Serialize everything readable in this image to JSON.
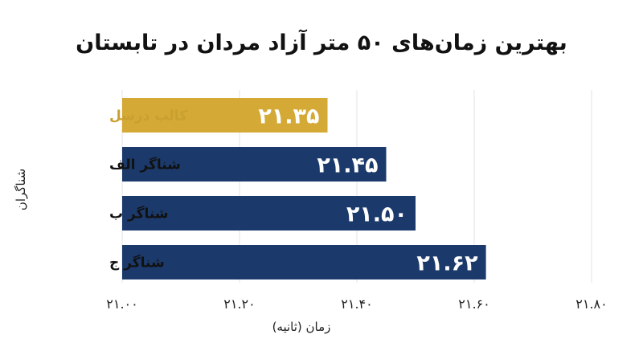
{
  "chart_data": {
    "type": "bar",
    "orientation": "horizontal",
    "title": "بهترین زمان‌های ۵۰ متر آزاد مردان در تابستان",
    "xlabel": "زمان (ثانیه)",
    "ylabel": "شناگران",
    "categories": [
      "کالب درسل",
      "شناگر الف",
      "شناگر ب",
      "شناگر ج"
    ],
    "values": [
      21.35,
      21.45,
      21.5,
      21.62
    ],
    "value_labels": [
      "۲۱.۳۵",
      "۲۱.۴۵",
      "۲۱.۵۰",
      "۲۱.۶۲"
    ],
    "xlim": [
      21.0,
      21.8
    ],
    "ticks": [
      21.0,
      21.2,
      21.4,
      21.6,
      21.8
    ],
    "tick_labels": [
      "۲۱.۰۰",
      "۲۱.۲۰",
      "۲۱.۴۰",
      "۲۱.۶۰",
      "۲۱.۸۰"
    ],
    "grid": "vertical",
    "colors": {
      "highlight": "#D4A935",
      "bar": "#1B3A6B",
      "bar_text": "#FFFFFF",
      "highlight_label": "#C9A030",
      "label": "#111111"
    },
    "highlight_index": 0
  }
}
